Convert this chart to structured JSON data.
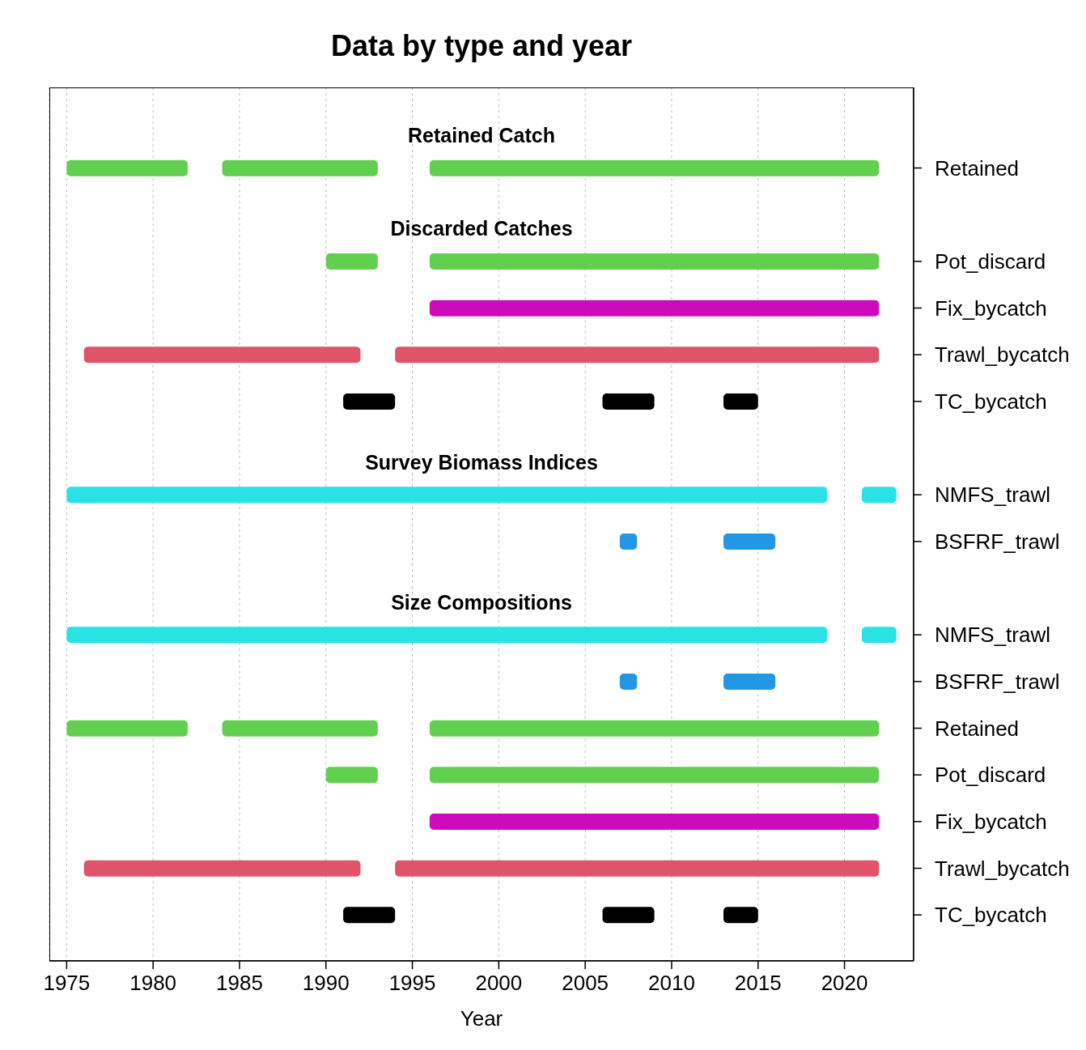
{
  "chart_data": {
    "type": "bar",
    "orientation": "horizontal",
    "title": "Data by type and year",
    "xlabel": "Year",
    "categories": [
      null,
      "Retained",
      null,
      "Pot_discard",
      "Fix_bycatch",
      "Trawl_bycatch",
      "TC_bycatch",
      null,
      "NMFS_trawl",
      "BSFRF_trawl",
      null,
      "NMFS_trawl",
      "BSFRF_trawl",
      "Retained",
      "Pot_discard",
      "Fix_bycatch",
      "Trawl_bycatch",
      "TC_bycatch"
    ],
    "annotations": [
      "Retained Catch",
      "Discarded Catches",
      "Survey Biomass Indices",
      "Size Compositions"
    ],
    "series": [
      {
        "base": [
          null,
          1975,
          null,
          1990,
          1996,
          1976,
          1991,
          null,
          1975,
          2007,
          null,
          1975,
          2007,
          1975,
          1990,
          1996,
          1976,
          1991
        ],
        "values": [
          null,
          7,
          null,
          3,
          26,
          16,
          3,
          null,
          44,
          1,
          null,
          44,
          1,
          7,
          3,
          26,
          16,
          3
        ],
        "colors": [
          null,
          "#61d04f",
          null,
          "#61d04f",
          "#cd0bbc",
          "#df536b",
          "#000000",
          null,
          "#28e2e5",
          "#2297e6",
          null,
          "#28e2e5",
          "#2297e6",
          "#61d04f",
          "#61d04f",
          "#cd0bbc",
          "#df536b",
          "#000000"
        ]
      },
      {
        "base": [
          null,
          1984,
          null,
          1996,
          null,
          1994,
          2006,
          null,
          2021,
          2013,
          null,
          2021,
          2013,
          1984,
          1996,
          null,
          1994,
          2006
        ],
        "values": [
          null,
          9,
          null,
          26,
          null,
          28,
          3,
          null,
          2,
          3,
          null,
          2,
          3,
          9,
          26,
          null,
          28,
          3
        ],
        "colors": [
          null,
          "#61d04f",
          null,
          "#61d04f",
          null,
          "#df536b",
          "#000000",
          null,
          "#28e2e5",
          "#2297e6",
          null,
          "#28e2e5",
          "#2297e6",
          "#61d04f",
          "#61d04f",
          null,
          "#df536b",
          "#000000"
        ]
      },
      {
        "base": [
          null,
          1996,
          null,
          null,
          null,
          null,
          2013,
          null,
          null,
          null,
          null,
          null,
          null,
          1996,
          null,
          null,
          null,
          2013
        ],
        "values": [
          null,
          26,
          null,
          null,
          null,
          null,
          2,
          null,
          null,
          null,
          null,
          null,
          null,
          26,
          null,
          null,
          null,
          2
        ],
        "colors": [
          null,
          "#61d04f",
          null,
          null,
          null,
          null,
          "#000000",
          null,
          null,
          null,
          null,
          null,
          null,
          "#61d04f",
          null,
          null,
          null,
          "#000000"
        ]
      }
    ],
    "xlim": [
      1974,
      2024
    ],
    "xticks": [
      1975,
      1980,
      1985,
      1990,
      1995,
      2000,
      2005,
      2010,
      2015,
      2020
    ],
    "grid": "x"
  }
}
